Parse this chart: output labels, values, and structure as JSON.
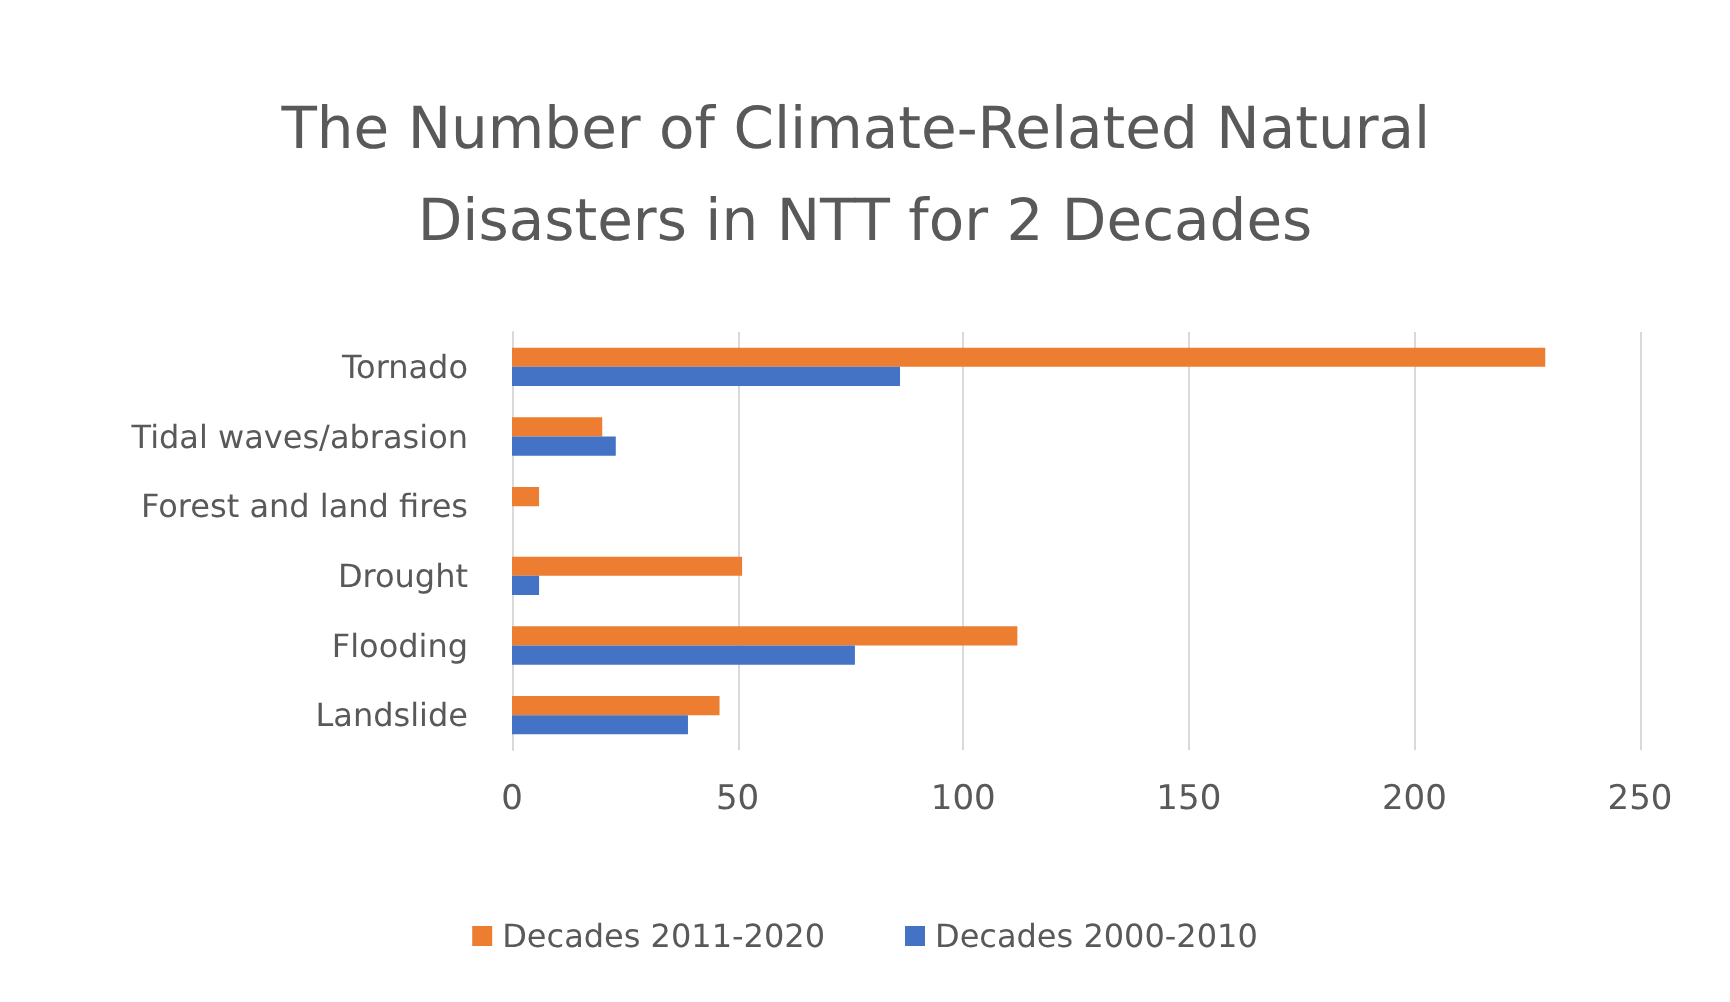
{
  "chart_data": {
    "type": "bar",
    "orientation": "horizontal",
    "title": "The Number of Climate-Related Natural Disasters in NTT for 2 Decades",
    "categories": [
      "Tornado",
      "Tidal waves/abrasion",
      "Forest and land fires",
      "Drought",
      "Flooding",
      "Landslide"
    ],
    "series": [
      {
        "name": "Decades 2011-2020",
        "color": "#ed7d31",
        "values": [
          229,
          20,
          6,
          51,
          112,
          46
        ]
      },
      {
        "name": "Decades 2000-2010",
        "color": "#4472c4",
        "values": [
          86,
          23,
          0,
          6,
          76,
          39
        ]
      }
    ],
    "xlim": [
      0,
      250
    ],
    "xticks": [
      0,
      50,
      100,
      150,
      200,
      250
    ],
    "grid": "x",
    "legend": "bottom"
  }
}
